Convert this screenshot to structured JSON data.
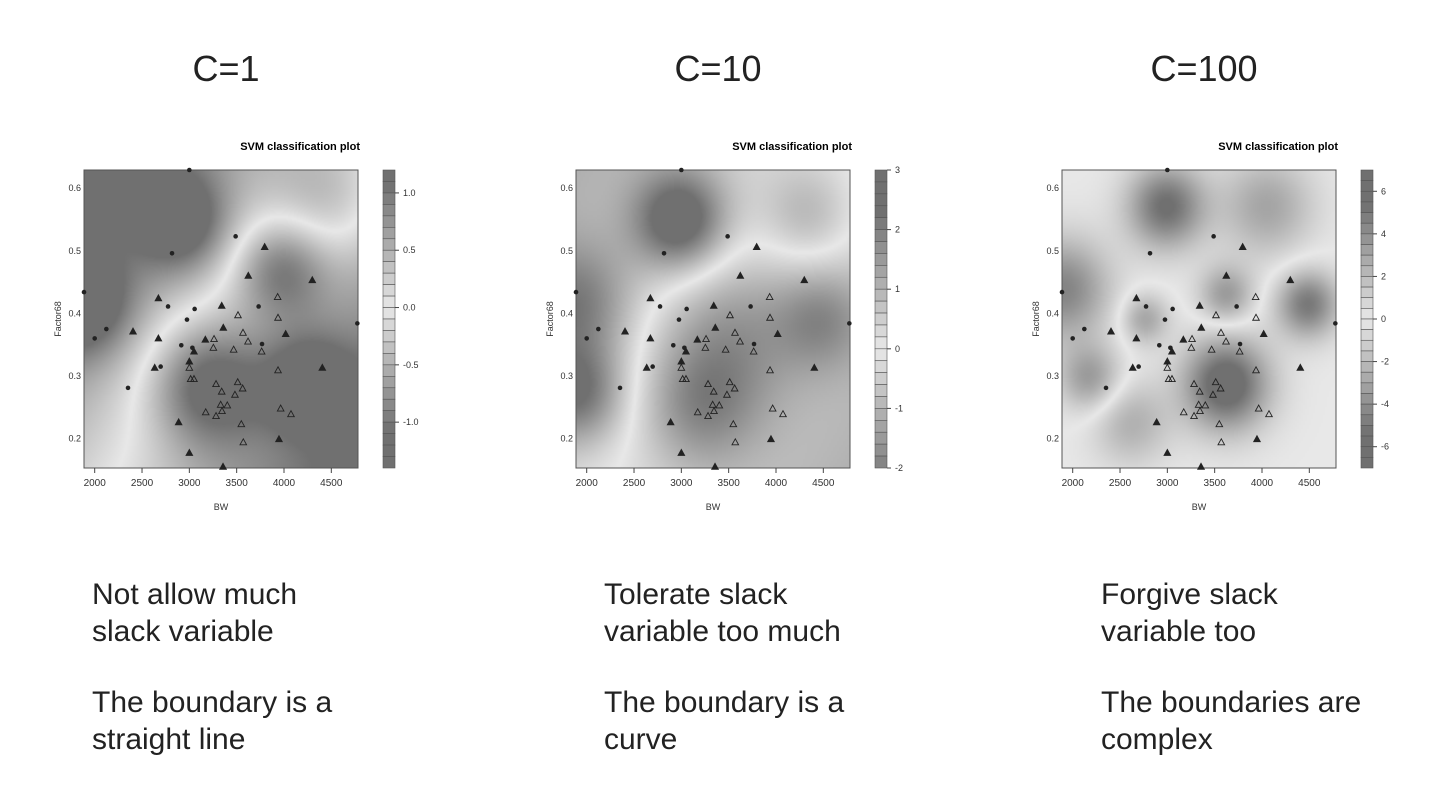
{
  "slide": {
    "columns": [
      {
        "heading": "C=1",
        "caption1": "Not allow much slack variable",
        "caption1_lines": [
          "Not allow much",
          "slack variable"
        ],
        "caption2_lines": [
          "The boundary is a",
          "straight line"
        ]
      },
      {
        "heading": "C=10",
        "caption1_lines": [
          "Tolerate slack",
          "variable too much"
        ],
        "caption2_lines": [
          "The boundary is a",
          "curve"
        ]
      },
      {
        "heading": "C=100",
        "caption1_lines": [
          "Forgive slack",
          "variable too"
        ],
        "caption2_lines": [
          "The boundaries are",
          "complex"
        ]
      }
    ]
  },
  "chart_data": [
    {
      "type": "scatter",
      "title": "SVM classification plot",
      "xlabel": "BW",
      "ylabel": "Factor68",
      "xlim": [
        1887,
        4782
      ],
      "ylim": [
        0.153,
        0.629
      ],
      "xticks": [
        2000,
        2500,
        3000,
        3500,
        4000,
        4500
      ],
      "yticks": [
        "0.6",
        "0.5",
        "0.4",
        "0.3",
        "0.2"
      ],
      "colorbar": {
        "range": [
          -1.4,
          1.2
        ],
        "ticks": [
          1.0,
          0.5,
          0.0,
          -0.5,
          -1.0
        ],
        "tick_labels": [
          "1.0",
          "0.5",
          "0.0",
          "-0.5",
          "-1.0"
        ],
        "levels": 26
      }
    },
    {
      "type": "scatter",
      "title": "SVM classification plot",
      "xlabel": "BW",
      "ylabel": "Factor68",
      "xlim": [
        1887,
        4782
      ],
      "ylim": [
        0.153,
        0.629
      ],
      "xticks": [
        2000,
        2500,
        3000,
        3500,
        4000,
        4500
      ],
      "yticks": [
        "0.6",
        "0.5",
        "0.4",
        "0.3",
        "0.2"
      ],
      "colorbar": {
        "range": [
          -2,
          3
        ],
        "ticks": [
          3,
          2,
          1,
          0,
          -1,
          -2
        ],
        "tick_labels": [
          "3",
          "2",
          "1",
          "0",
          "-1",
          "-2"
        ],
        "levels": 25
      }
    },
    {
      "type": "scatter",
      "title": "SVM classification plot",
      "xlabel": "BW",
      "ylabel": "Factor68",
      "xlim": [
        1887,
        4782
      ],
      "ylim": [
        0.153,
        0.629
      ],
      "xticks": [
        2000,
        2500,
        3000,
        3500,
        4000,
        4500
      ],
      "yticks": [
        "0.6",
        "0.5",
        "0.4",
        "0.3",
        "0.2"
      ],
      "colorbar": {
        "range": [
          -7,
          7
        ],
        "ticks": [
          6,
          4,
          2,
          0,
          -2,
          -4,
          -6
        ],
        "tick_labels": [
          "6",
          "4",
          "2",
          "0",
          "-2",
          "-4",
          "-6"
        ],
        "levels": 28
      }
    }
  ],
  "points_legend": {
    "c": "filled circle (class 1, support vector)",
    "tf": "filled triangle (class 2, support vector)",
    "to": "open triangle (class 2)"
  },
  "points": [
    [
      3000,
      0.629,
      "c"
    ],
    [
      3489,
      0.523,
      "c"
    ],
    [
      2817,
      0.496,
      "c"
    ],
    [
      1887,
      0.434,
      "c"
    ],
    [
      2775,
      0.411,
      "c"
    ],
    [
      3056,
      0.407,
      "c"
    ],
    [
      2975,
      0.39,
      "c"
    ],
    [
      2123,
      0.375,
      "c"
    ],
    [
      2000,
      0.36,
      "c"
    ],
    [
      3732,
      0.411,
      "c"
    ],
    [
      2915,
      0.349,
      "c"
    ],
    [
      3032,
      0.345,
      "c"
    ],
    [
      2697,
      0.315,
      "c"
    ],
    [
      3768,
      0.351,
      "c"
    ],
    [
      2352,
      0.281,
      "c"
    ],
    [
      4775,
      0.384,
      "c"
    ],
    [
      3796,
      0.506,
      "tf"
    ],
    [
      3623,
      0.46,
      "tf"
    ],
    [
      4299,
      0.453,
      "tf"
    ],
    [
      2673,
      0.424,
      "tf"
    ],
    [
      3342,
      0.412,
      "tf"
    ],
    [
      2405,
      0.371,
      "tf"
    ],
    [
      2673,
      0.36,
      "tf"
    ],
    [
      3359,
      0.377,
      "tf"
    ],
    [
      3169,
      0.358,
      "tf"
    ],
    [
      4018,
      0.367,
      "tf"
    ],
    [
      3000,
      0.323,
      "tf"
    ],
    [
      3049,
      0.339,
      "tf"
    ],
    [
      2634,
      0.313,
      "tf"
    ],
    [
      4405,
      0.313,
      "tf"
    ],
    [
      2887,
      0.226,
      "tf"
    ],
    [
      3947,
      0.199,
      "tf"
    ],
    [
      3000,
      0.177,
      "tf"
    ],
    [
      3356,
      0.155,
      "tf"
    ],
    [
      3933,
      0.426,
      "to"
    ],
    [
      3937,
      0.393,
      "to"
    ],
    [
      3514,
      0.397,
      "to"
    ],
    [
      3567,
      0.369,
      "to"
    ],
    [
      3620,
      0.355,
      "to"
    ],
    [
      3261,
      0.359,
      "to"
    ],
    [
      3254,
      0.345,
      "to"
    ],
    [
      3468,
      0.342,
      "to"
    ],
    [
      3764,
      0.339,
      "to"
    ],
    [
      3000,
      0.313,
      "to"
    ],
    [
      3014,
      0.295,
      "to"
    ],
    [
      3049,
      0.295,
      "to"
    ],
    [
      3282,
      0.287,
      "to"
    ],
    [
      3342,
      0.275,
      "to"
    ],
    [
      3511,
      0.29,
      "to"
    ],
    [
      3563,
      0.28,
      "to"
    ],
    [
      3482,
      0.27,
      "to"
    ],
    [
      3331,
      0.254,
      "to"
    ],
    [
      3401,
      0.253,
      "to"
    ],
    [
      3345,
      0.244,
      "to"
    ],
    [
      3173,
      0.242,
      "to"
    ],
    [
      3282,
      0.236,
      "to"
    ],
    [
      3549,
      0.223,
      "to"
    ],
    [
      3570,
      0.194,
      "to"
    ],
    [
      3937,
      0.309,
      "to"
    ],
    [
      3965,
      0.248,
      "to"
    ],
    [
      4074,
      0.239,
      "to"
    ]
  ]
}
